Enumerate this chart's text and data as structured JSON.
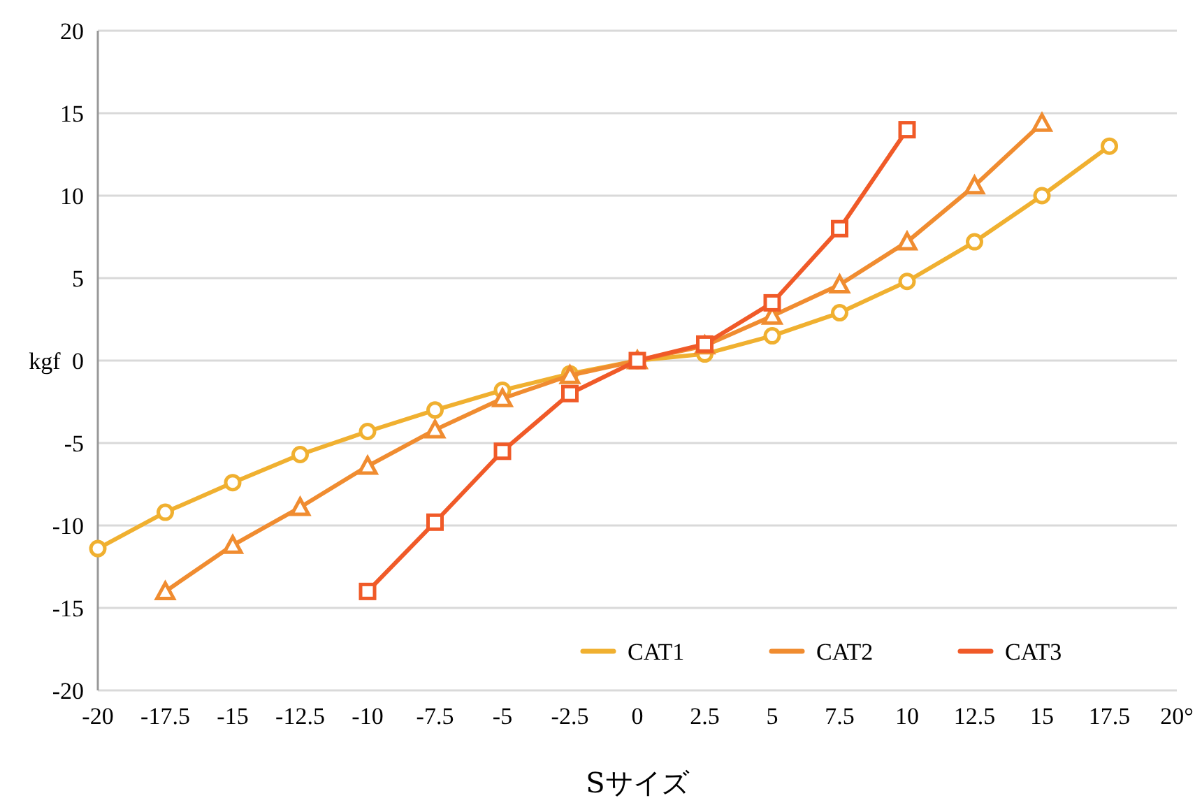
{
  "chart_data": {
    "type": "line",
    "xlabel": "Sサイズ",
    "ylabel": "kgf",
    "xlim": [
      -20,
      20
    ],
    "ylim": [
      -20,
      20
    ],
    "xticks": [
      -20,
      -17.5,
      -15,
      -12.5,
      -10,
      -7.5,
      -5,
      -2.5,
      0,
      2.5,
      5,
      7.5,
      10,
      12.5,
      15,
      17.5,
      {
        "value": 20,
        "label": "20°"
      }
    ],
    "yticks": [
      -20,
      -15,
      -10,
      -5,
      0,
      5,
      10,
      15,
      20
    ],
    "grid": "y",
    "legend": "bottom right",
    "line_style": "solid",
    "series": [
      {
        "name": "CAT1",
        "color": "#f0b030",
        "marker": "circle",
        "x": [
          -20,
          -17.5,
          -15,
          -12.5,
          -10,
          -7.5,
          -5,
          -2.5,
          0,
          2.5,
          5,
          7.5,
          10,
          12.5,
          15,
          17.5
        ],
        "values": [
          -11.4,
          -9.2,
          -7.4,
          -5.7,
          -4.3,
          -3.0,
          -1.8,
          -0.8,
          0,
          0.4,
          1.5,
          2.9,
          4.8,
          7.2,
          10,
          13
        ]
      },
      {
        "name": "CAT2",
        "color": "#f08c30",
        "marker": "triangle",
        "x": [
          -17.5,
          -15,
          -12.5,
          -10,
          -7.5,
          -5,
          -2.5,
          0,
          2.5,
          5,
          7.5,
          10,
          12.5,
          15
        ],
        "values": [
          -14,
          -11.2,
          -8.9,
          -6.4,
          -4.2,
          -2.3,
          -0.9,
          0,
          0.9,
          2.7,
          4.6,
          7.2,
          10.6,
          14.4
        ]
      },
      {
        "name": "CAT3",
        "color": "#f05a28",
        "marker": "square",
        "x": [
          -10,
          -7.5,
          -5,
          -2.5,
          0,
          2.5,
          5,
          7.5,
          10
        ],
        "values": [
          -14,
          -9.8,
          -5.5,
          -2,
          0,
          1,
          3.5,
          8,
          14
        ]
      }
    ]
  }
}
